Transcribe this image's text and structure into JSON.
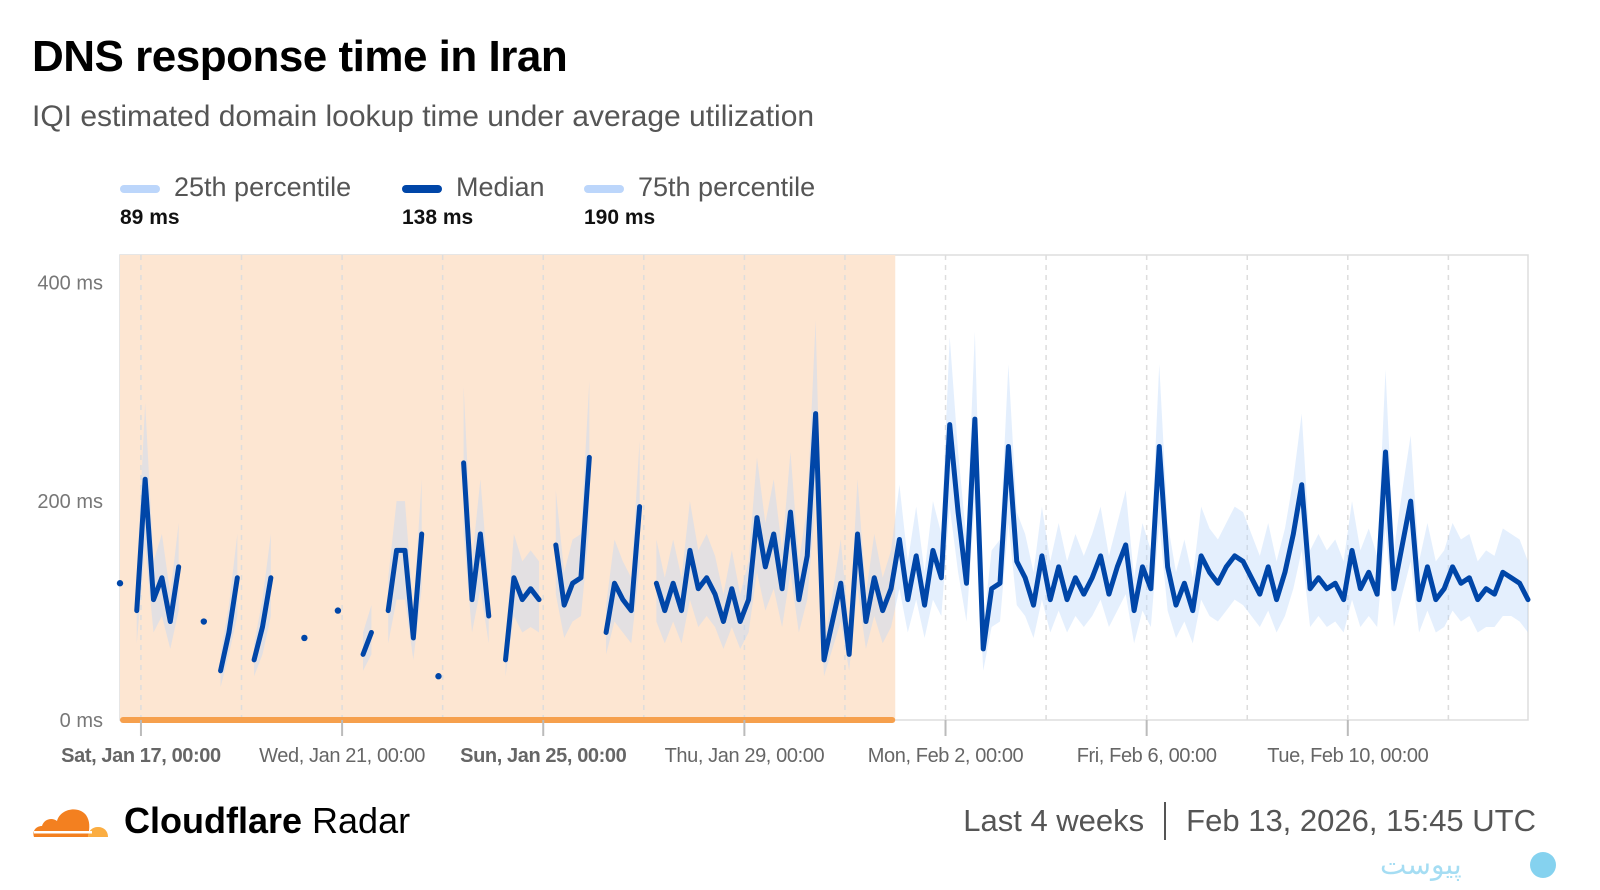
{
  "header": {
    "title": "DNS response time in Iran",
    "subtitle": "IQI estimated domain lookup time under average utilization"
  },
  "legend": [
    {
      "label": "25th percentile",
      "value": "89 ms",
      "color": "#bcd6fb"
    },
    {
      "label": "Median",
      "value": "138 ms",
      "color": "#0046a8"
    },
    {
      "label": "75th percentile",
      "value": "190 ms",
      "color": "#bcd6fb"
    }
  ],
  "footer": {
    "brand_bold": "Cloudflare",
    "brand_light": "Radar",
    "range": "Last 4 weeks",
    "timestamp": "Feb 13, 2026, 15:45 UTC",
    "watermark": "پیوست"
  },
  "chart_data": {
    "type": "line",
    "title": "DNS response time in Iran",
    "ylim": [
      0,
      425
    ],
    "y_ticks": [
      {
        "value": 0,
        "label": "0 ms"
      },
      {
        "value": 200,
        "label": "200 ms"
      },
      {
        "value": 400,
        "label": "400 ms"
      }
    ],
    "x_range": [
      "2026-01-16T14:00",
      "2026-02-13T14:00"
    ],
    "x_gridlines_every_days": 2,
    "x_ticks": [
      {
        "value": "2026-01-17T00:00",
        "label": "Sat, Jan 17, 00:00",
        "bold": true
      },
      {
        "value": "2026-01-21T00:00",
        "label": "Wed, Jan 21, 00:00",
        "bold": false
      },
      {
        "value": "2026-01-25T00:00",
        "label": "Sun, Jan 25, 00:00",
        "bold": true
      },
      {
        "value": "2026-01-29T00:00",
        "label": "Thu, Jan 29, 00:00",
        "bold": false
      },
      {
        "value": "2026-02-02T00:00",
        "label": "Mon, Feb 2, 00:00",
        "bold": false
      },
      {
        "value": "2026-02-06T00:00",
        "label": "Fri, Feb 6, 00:00",
        "bold": false
      },
      {
        "value": "2026-02-10T00:00",
        "label": "Tue, Feb 10, 00:00",
        "bold": false
      }
    ],
    "grid": true,
    "legend_position": "top-left",
    "highlight_range": {
      "from": "2026-01-16T14:00",
      "to": "2026-02-01T00:00",
      "fill": "#fde6d2",
      "bar": "#f6a04d"
    },
    "colors": {
      "median": "#0046a8",
      "band": "#bcd6fb"
    },
    "x": [
      "2026-01-16T14:00",
      "2026-01-16T18:00",
      "2026-01-16T22:00",
      "2026-01-17T02:00",
      "2026-01-17T06:00",
      "2026-01-17T10:00",
      "2026-01-17T14:00",
      "2026-01-17T18:00",
      "2026-01-17T22:00",
      "2026-01-18T02:00",
      "2026-01-18T06:00",
      "2026-01-18T10:00",
      "2026-01-18T14:00",
      "2026-01-18T18:00",
      "2026-01-18T22:00",
      "2026-01-19T02:00",
      "2026-01-19T06:00",
      "2026-01-19T10:00",
      "2026-01-19T14:00",
      "2026-01-19T18:00",
      "2026-01-19T22:00",
      "2026-01-20T02:00",
      "2026-01-20T06:00",
      "2026-01-20T10:00",
      "2026-01-20T14:00",
      "2026-01-20T18:00",
      "2026-01-20T22:00",
      "2026-01-21T02:00",
      "2026-01-21T06:00",
      "2026-01-21T10:00",
      "2026-01-21T14:00",
      "2026-01-21T18:00",
      "2026-01-21T22:00",
      "2026-01-22T02:00",
      "2026-01-22T06:00",
      "2026-01-22T10:00",
      "2026-01-22T14:00",
      "2026-01-22T18:00",
      "2026-01-22T22:00",
      "2026-01-23T02:00",
      "2026-01-23T06:00",
      "2026-01-23T10:00",
      "2026-01-23T14:00",
      "2026-01-23T18:00",
      "2026-01-23T22:00",
      "2026-01-24T02:00",
      "2026-01-24T06:00",
      "2026-01-24T10:00",
      "2026-01-24T14:00",
      "2026-01-24T18:00",
      "2026-01-24T22:00",
      "2026-01-25T02:00",
      "2026-01-25T06:00",
      "2026-01-25T10:00",
      "2026-01-25T14:00",
      "2026-01-25T18:00",
      "2026-01-25T22:00",
      "2026-01-26T02:00",
      "2026-01-26T06:00",
      "2026-01-26T10:00",
      "2026-01-26T14:00",
      "2026-01-26T18:00",
      "2026-01-26T22:00",
      "2026-01-27T02:00",
      "2026-01-27T06:00",
      "2026-01-27T10:00",
      "2026-01-27T14:00",
      "2026-01-27T18:00",
      "2026-01-27T22:00",
      "2026-01-28T02:00",
      "2026-01-28T06:00",
      "2026-01-28T10:00",
      "2026-01-28T14:00",
      "2026-01-28T18:00",
      "2026-01-28T22:00",
      "2026-01-29T02:00",
      "2026-01-29T06:00",
      "2026-01-29T10:00",
      "2026-01-29T14:00",
      "2026-01-29T18:00",
      "2026-01-29T22:00",
      "2026-01-30T02:00",
      "2026-01-30T06:00",
      "2026-01-30T10:00",
      "2026-01-30T14:00",
      "2026-01-30T18:00",
      "2026-01-30T22:00",
      "2026-01-31T02:00",
      "2026-01-31T06:00",
      "2026-01-31T10:00",
      "2026-01-31T14:00",
      "2026-01-31T18:00",
      "2026-01-31T22:00",
      "2026-02-01T02:00",
      "2026-02-01T06:00",
      "2026-02-01T10:00",
      "2026-02-01T14:00",
      "2026-02-01T18:00",
      "2026-02-01T22:00",
      "2026-02-02T02:00",
      "2026-02-02T06:00",
      "2026-02-02T10:00",
      "2026-02-02T14:00",
      "2026-02-02T18:00",
      "2026-02-02T22:00",
      "2026-02-03T02:00",
      "2026-02-03T06:00",
      "2026-02-03T10:00",
      "2026-02-03T14:00",
      "2026-02-03T18:00",
      "2026-02-03T22:00",
      "2026-02-04T02:00",
      "2026-02-04T06:00",
      "2026-02-04T10:00",
      "2026-02-04T14:00",
      "2026-02-04T18:00",
      "2026-02-04T22:00",
      "2026-02-05T02:00",
      "2026-02-05T06:00",
      "2026-02-05T10:00",
      "2026-02-05T14:00",
      "2026-02-05T18:00",
      "2026-02-05T22:00",
      "2026-02-06T02:00",
      "2026-02-06T06:00",
      "2026-02-06T10:00",
      "2026-02-06T14:00",
      "2026-02-06T18:00",
      "2026-02-06T22:00",
      "2026-02-07T02:00",
      "2026-02-07T06:00",
      "2026-02-07T10:00",
      "2026-02-07T14:00",
      "2026-02-07T18:00",
      "2026-02-07T22:00",
      "2026-02-08T02:00",
      "2026-02-08T06:00",
      "2026-02-08T10:00",
      "2026-02-08T14:00",
      "2026-02-08T18:00",
      "2026-02-08T22:00",
      "2026-02-09T02:00",
      "2026-02-09T06:00",
      "2026-02-09T10:00",
      "2026-02-09T14:00",
      "2026-02-09T18:00",
      "2026-02-09T22:00",
      "2026-02-10T02:00",
      "2026-02-10T06:00",
      "2026-02-10T10:00",
      "2026-02-10T14:00",
      "2026-02-10T18:00",
      "2026-02-10T22:00",
      "2026-02-11T02:00",
      "2026-02-11T06:00",
      "2026-02-11T10:00",
      "2026-02-11T14:00",
      "2026-02-11T18:00",
      "2026-02-11T22:00",
      "2026-02-12T02:00",
      "2026-02-12T06:00",
      "2026-02-12T10:00",
      "2026-02-12T14:00",
      "2026-02-12T18:00",
      "2026-02-12T22:00",
      "2026-02-13T02:00",
      "2026-02-13T06:00",
      "2026-02-13T10:00",
      "2026-02-13T14:00"
    ],
    "series": [
      {
        "name": "Median",
        "values": [
          125,
          null,
          100,
          220,
          110,
          130,
          90,
          140,
          null,
          null,
          90,
          null,
          45,
          80,
          130,
          null,
          55,
          85,
          130,
          null,
          null,
          null,
          75,
          null,
          null,
          null,
          100,
          null,
          null,
          60,
          80,
          null,
          100,
          155,
          155,
          75,
          170,
          null,
          40,
          null,
          null,
          235,
          110,
          170,
          95,
          null,
          55,
          130,
          110,
          120,
          110,
          null,
          160,
          105,
          125,
          130,
          240,
          null,
          80,
          125,
          110,
          100,
          195,
          null,
          125,
          100,
          125,
          100,
          155,
          120,
          130,
          115,
          90,
          120,
          90,
          110,
          185,
          140,
          170,
          120,
          190,
          110,
          150,
          280,
          55,
          90,
          125,
          60,
          170,
          90,
          130,
          100,
          120,
          165,
          110,
          150,
          105,
          155,
          130,
          270,
          190,
          125,
          275,
          65,
          120,
          125,
          250,
          145,
          130,
          105,
          150,
          110,
          140,
          110,
          130,
          115,
          130,
          150,
          115,
          140,
          160,
          100,
          140,
          120,
          250,
          140,
          105,
          125,
          100,
          150,
          135,
          125,
          140,
          150,
          145,
          130,
          115,
          140,
          110,
          135,
          170,
          215,
          120,
          130,
          120,
          125,
          110,
          155,
          120,
          135,
          115,
          245,
          120,
          160,
          200,
          110,
          140,
          110,
          120,
          140,
          125,
          130,
          110,
          120,
          115,
          135,
          130,
          125,
          110
        ]
      },
      {
        "name": "25th percentile",
        "values": [
          90,
          null,
          70,
          160,
          80,
          95,
          65,
          100,
          null,
          null,
          65,
          null,
          30,
          60,
          95,
          null,
          40,
          60,
          95,
          null,
          null,
          null,
          55,
          null,
          null,
          null,
          70,
          null,
          null,
          45,
          60,
          null,
          70,
          110,
          110,
          55,
          120,
          null,
          30,
          null,
          null,
          170,
          80,
          120,
          70,
          null,
          40,
          95,
          80,
          85,
          80,
          null,
          115,
          75,
          90,
          95,
          175,
          null,
          60,
          90,
          80,
          70,
          140,
          null,
          90,
          70,
          90,
          70,
          110,
          85,
          95,
          85,
          65,
          85,
          65,
          80,
          135,
          100,
          120,
          85,
          135,
          80,
          110,
          200,
          40,
          65,
          90,
          45,
          120,
          65,
          95,
          70,
          85,
          120,
          80,
          110,
          75,
          110,
          95,
          195,
          135,
          90,
          200,
          45,
          85,
          90,
          180,
          105,
          95,
          75,
          110,
          80,
          100,
          80,
          95,
          85,
          95,
          110,
          85,
          100,
          115,
          70,
          100,
          85,
          180,
          100,
          75,
          90,
          70,
          110,
          95,
          90,
          100,
          110,
          105,
          95,
          85,
          100,
          80,
          95,
          120,
          155,
          85,
          95,
          85,
          90,
          80,
          110,
          85,
          95,
          85,
          175,
          85,
          115,
          145,
          80,
          100,
          80,
          85,
          100,
          90,
          95,
          80,
          85,
          85,
          95,
          95,
          90,
          80
        ]
      },
      {
        "name": "75th percentile",
        "values": [
          165,
          null,
          130,
          290,
          145,
          170,
          115,
          180,
          null,
          null,
          115,
          null,
          60,
          105,
          170,
          null,
          70,
          110,
          170,
          null,
          null,
          null,
          100,
          null,
          null,
          null,
          130,
          null,
          null,
          80,
          105,
          null,
          130,
          200,
          200,
          100,
          220,
          null,
          50,
          null,
          null,
          305,
          145,
          220,
          125,
          null,
          70,
          170,
          145,
          155,
          145,
          null,
          210,
          135,
          165,
          170,
          310,
          null,
          105,
          165,
          145,
          130,
          255,
          null,
          165,
          130,
          165,
          130,
          200,
          155,
          170,
          150,
          115,
          155,
          115,
          145,
          240,
          180,
          220,
          155,
          245,
          145,
          195,
          365,
          70,
          115,
          165,
          80,
          220,
          115,
          170,
          130,
          155,
          215,
          145,
          195,
          135,
          200,
          170,
          350,
          245,
          165,
          355,
          85,
          155,
          165,
          325,
          190,
          170,
          135,
          195,
          145,
          180,
          145,
          170,
          150,
          170,
          195,
          150,
          180,
          210,
          130,
          180,
          155,
          325,
          180,
          135,
          165,
          130,
          195,
          175,
          165,
          180,
          195,
          190,
          170,
          150,
          180,
          145,
          175,
          220,
          280,
          155,
          170,
          155,
          165,
          145,
          200,
          155,
          175,
          150,
          320,
          155,
          210,
          260,
          145,
          180,
          145,
          155,
          180,
          165,
          170,
          145,
          155,
          150,
          175,
          170,
          165,
          145
        ]
      }
    ]
  }
}
